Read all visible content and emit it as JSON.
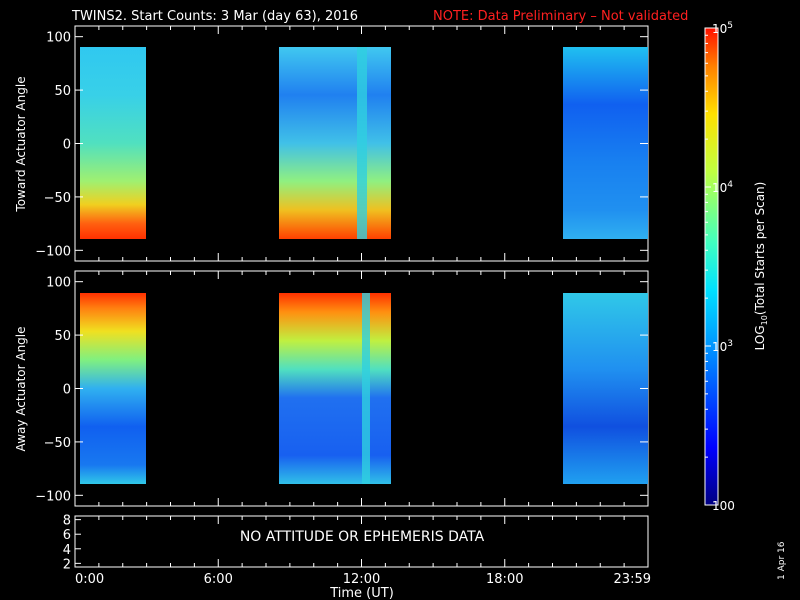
{
  "title": {
    "main": "TWINS2. Start Counts:  3 Mar (day  63), 2016",
    "note": "NOTE: Data Preliminary – Not validated",
    "note_color": "#ff2020"
  },
  "colorbar": {
    "label": "LOG10(Total Starts per Scan)",
    "ticks": [
      "100",
      "10^3",
      "10^4",
      "10^5"
    ],
    "colormap": [
      "#000080",
      "#0000ff",
      "#0080ff",
      "#00e0ff",
      "#40ffc0",
      "#c0ff40",
      "#ffe000",
      "#ff8000",
      "#ff1000"
    ]
  },
  "panel3_message": "NO ATTITUDE OR EPHEMERIS DATA",
  "stamp": "1 Apr 16",
  "chart_data": [
    {
      "type": "heatmap",
      "title": "",
      "ylabel": "Toward Actuator Angle",
      "ylim": [
        -110,
        110
      ],
      "yticks": [
        "100",
        "50",
        "0",
        "−50",
        "−100"
      ],
      "xlim": [
        0,
        24
      ],
      "x_unit": "hours UT",
      "data_intervals_hours": [
        [
          0,
          2.75
        ],
        [
          8.5,
          13.25
        ],
        [
          20.5,
          24
        ]
      ],
      "value_scale": "log",
      "value_range": [
        100,
        100000
      ],
      "description_values": {
        "typical": "~10^3",
        "high_near_minus_angle": "~10^4.5"
      }
    },
    {
      "type": "heatmap",
      "title": "",
      "ylabel": "Away Actuator Angle",
      "ylim": [
        -110,
        110
      ],
      "yticks": [
        "100",
        "50",
        "0",
        "−50",
        "−100"
      ],
      "xlim": [
        0,
        24
      ],
      "x_unit": "hours UT",
      "data_intervals_hours": [
        [
          0,
          2.75
        ],
        [
          8.5,
          13.25
        ],
        [
          20.5,
          24
        ]
      ],
      "value_scale": "log",
      "value_range": [
        100,
        100000
      ],
      "description_values": {
        "typical": "~10^3",
        "high_near_plus_angle": "~10^4.5"
      }
    },
    {
      "type": "line",
      "title": "",
      "ylabel": "",
      "ylim": [
        1.5,
        8.5
      ],
      "yticks": [
        "8",
        "6",
        "4",
        "2"
      ],
      "xlim": [
        0,
        24
      ],
      "series": []
    }
  ],
  "x_axis": {
    "label": "Time (UT)",
    "ticks": [
      "0:00",
      "6:00",
      "12:00",
      "18:00",
      "23:59"
    ]
  }
}
